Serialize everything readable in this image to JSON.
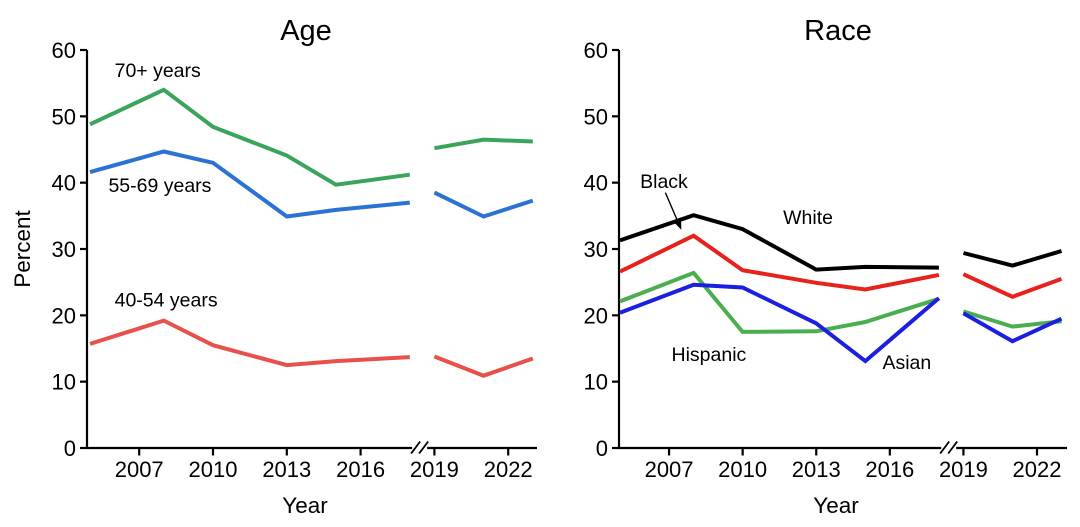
{
  "figure_title": "",
  "chart_data": [
    {
      "type": "line",
      "title": "Age",
      "xlabel": "Year",
      "ylabel": "Percent",
      "ylim": [
        0,
        60
      ],
      "yticks": [
        0,
        10,
        20,
        30,
        40,
        50,
        60
      ],
      "xticks": [
        2007,
        2010,
        2013,
        2016,
        2019,
        2022
      ],
      "x_range": [
        2005,
        2023
      ],
      "grid": "off",
      "legend": "inline-labels",
      "axis_break_year": 2018.4,
      "segment_years": [
        [
          2005,
          2008,
          2010,
          2013,
          2015,
          2018
        ],
        [
          2019,
          2021,
          2023
        ]
      ],
      "series": [
        {
          "name": "70+ years",
          "color": "#3BA45B",
          "values": [
            [
              48.8,
              54.0,
              48.4,
              44.1,
              39.7,
              41.2
            ],
            [
              45.2,
              46.5,
              46.2
            ]
          ]
        },
        {
          "name": "55-69 years",
          "color": "#2A72D3",
          "values": [
            [
              41.6,
              44.7,
              43.0,
              34.9,
              35.9,
              37.0
            ],
            [
              38.5,
              34.9,
              37.3
            ]
          ]
        },
        {
          "name": "40-54 years",
          "color": "#E8514B",
          "values": [
            [
              15.7,
              19.2,
              15.5,
              12.5,
              13.1,
              13.7
            ],
            [
              13.8,
              10.9,
              13.5
            ]
          ]
        }
      ],
      "annotations": [
        {
          "text": "70+ years",
          "year": 2006.0,
          "pct": 55.9
        },
        {
          "text": "55-69 years",
          "year": 2005.75,
          "pct": 38.6
        },
        {
          "text": "40-54 years",
          "year": 2006.0,
          "pct": 21.3
        }
      ]
    },
    {
      "type": "line",
      "title": "Race",
      "xlabel": "Year",
      "ylabel": "",
      "ylim": [
        0,
        60
      ],
      "yticks": [
        0,
        10,
        20,
        30,
        40,
        50,
        60
      ],
      "xticks": [
        2007,
        2010,
        2013,
        2016,
        2019,
        2022
      ],
      "x_range": [
        2005,
        2023
      ],
      "grid": "off",
      "legend": "inline-labels",
      "axis_break_year": 2018.4,
      "segment_years": [
        [
          2005,
          2008,
          2010,
          2013,
          2015,
          2018
        ],
        [
          2019,
          2021,
          2023
        ]
      ],
      "series": [
        {
          "name": "White",
          "color": "#000000",
          "values": [
            [
              31.3,
              35.1,
              33.0,
              26.9,
              27.3,
              27.2
            ],
            [
              29.4,
              27.5,
              29.7
            ]
          ]
        },
        {
          "name": "Black",
          "color": "#E8211C",
          "values": [
            [
              26.6,
              32.0,
              26.8,
              24.9,
              23.9,
              26.1
            ],
            [
              26.2,
              22.8,
              25.5
            ]
          ]
        },
        {
          "name": "Hispanic",
          "color": "#4AAE51",
          "values": [
            [
              22.1,
              26.4,
              17.5,
              17.6,
              19.0,
              22.5
            ],
            [
              20.6,
              18.3,
              19.1
            ]
          ]
        },
        {
          "name": "Asian",
          "color": "#1B1FE0",
          "values": [
            [
              20.4,
              24.6,
              24.2,
              18.8,
              13.1,
              22.6
            ],
            [
              20.3,
              16.1,
              19.5
            ]
          ]
        }
      ],
      "annotations": [
        {
          "text": "Black",
          "year": 2005.82,
          "pct": 39.2,
          "arrow": {
            "from_year": 2006.85,
            "from_pct": 38.5,
            "to_year": 2007.5,
            "to_pct": 32.9
          }
        },
        {
          "text": "White",
          "year": 2011.65,
          "pct": 33.8
        },
        {
          "text": "Hispanic",
          "year": 2007.1,
          "pct": 13.1
        },
        {
          "text": "Asian",
          "year": 2015.7,
          "pct": 11.9
        }
      ]
    }
  ]
}
